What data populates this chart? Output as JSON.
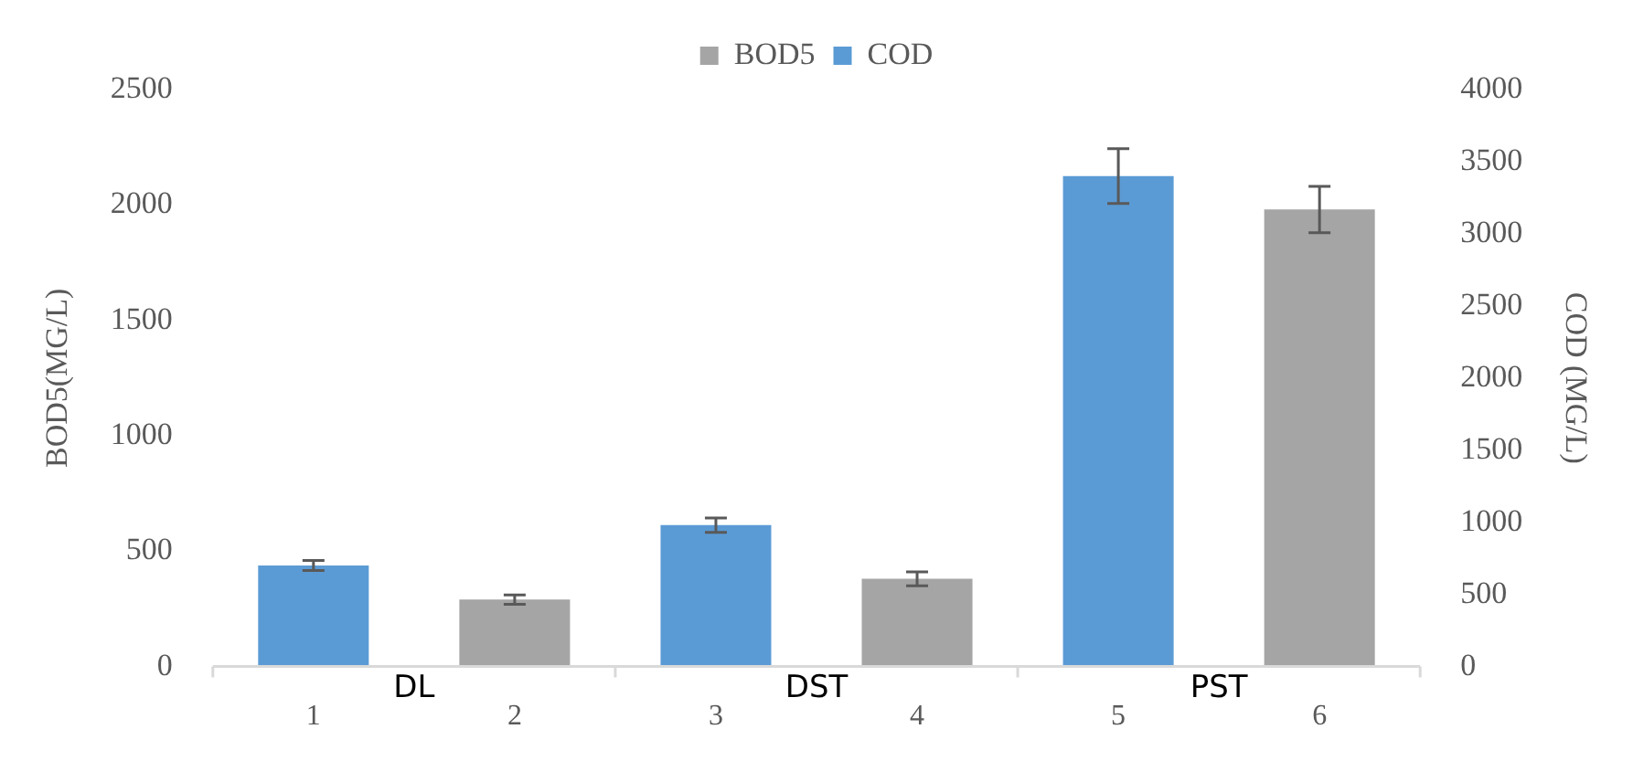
{
  "chart_data": {
    "type": "bar",
    "categories": [
      "1",
      "2",
      "3",
      "4",
      "5",
      "6"
    ],
    "series": [
      {
        "name": "BOD5",
        "color": "#a5a5a5",
        "values": [
          null,
          290,
          null,
          380,
          null,
          1980
        ],
        "errors": [
          null,
          20,
          null,
          30,
          null,
          100
        ]
      },
      {
        "name": "COD",
        "color": "#5b9bd5",
        "axis": "y2",
        "values": [
          700,
          null,
          980,
          null,
          3400,
          null
        ],
        "errors": [
          35,
          null,
          50,
          null,
          190,
          null
        ]
      }
    ],
    "ylabel": "BOD5(MG/L)",
    "y2label": "COD (MG/L)",
    "ylim": [
      0,
      2500
    ],
    "yticks": [
      0,
      500,
      1000,
      1500,
      2000,
      2500
    ],
    "y2lim": [
      0,
      4000
    ],
    "y2ticks": [
      0,
      500,
      1000,
      1500,
      2000,
      2500,
      3000,
      3500,
      4000
    ],
    "annotations": [
      "DL",
      "DST",
      "PST"
    ],
    "grid": false,
    "legend": "top"
  }
}
